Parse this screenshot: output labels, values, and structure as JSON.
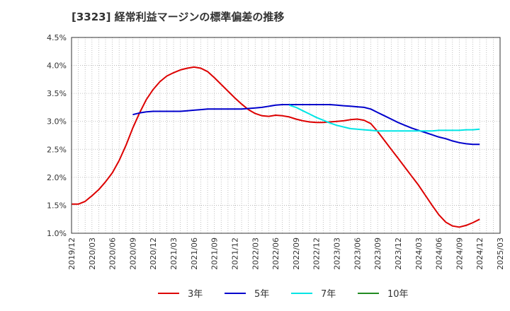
{
  "chart_data": {
    "type": "line",
    "title": "[3323]  経常利益マージンの標準偏差の推移",
    "xlabel": "",
    "ylabel": "",
    "x_ticks": [
      "2019/12",
      "2020/03",
      "2020/06",
      "2020/09",
      "2020/12",
      "2021/03",
      "2021/06",
      "2021/09",
      "2021/12",
      "2022/03",
      "2022/06",
      "2022/09",
      "2022/12",
      "2023/03",
      "2023/06",
      "2023/09",
      "2023/12",
      "2024/03",
      "2024/06",
      "2024/09",
      "2024/12",
      "2025/03"
    ],
    "y_ticks": [
      "1.0%",
      "1.5%",
      "2.0%",
      "2.5%",
      "3.0%",
      "3.5%",
      "4.0%",
      "4.5%"
    ],
    "ylim": [
      1.0,
      4.5
    ],
    "grid": true,
    "legend_position": "bottom",
    "series": [
      {
        "name": "3年",
        "color": "#dd0000",
        "x": [
          "2019/12",
          "2020/01",
          "2020/02",
          "2020/03",
          "2020/04",
          "2020/05",
          "2020/06",
          "2020/07",
          "2020/08",
          "2020/09",
          "2020/10",
          "2020/11",
          "2020/12",
          "2021/01",
          "2021/02",
          "2021/03",
          "2021/04",
          "2021/05",
          "2021/06",
          "2021/07",
          "2021/08",
          "2021/09",
          "2021/10",
          "2021/11",
          "2021/12",
          "2022/01",
          "2022/02",
          "2022/03",
          "2022/04",
          "2022/05",
          "2022/06",
          "2022/07",
          "2022/08",
          "2022/09",
          "2022/10",
          "2022/11",
          "2022/12",
          "2023/01",
          "2023/02",
          "2023/03",
          "2023/04",
          "2023/05",
          "2023/06",
          "2023/07",
          "2023/08",
          "2023/09",
          "2023/10",
          "2023/11",
          "2023/12",
          "2024/01",
          "2024/02",
          "2024/03",
          "2024/04",
          "2024/05",
          "2024/06",
          "2024/07",
          "2024/08",
          "2024/09",
          "2024/10",
          "2024/11",
          "2024/12"
        ],
        "values": [
          1.52,
          1.52,
          1.57,
          1.67,
          1.78,
          1.92,
          2.08,
          2.3,
          2.57,
          2.88,
          3.15,
          3.39,
          3.57,
          3.71,
          3.81,
          3.87,
          3.92,
          3.95,
          3.97,
          3.95,
          3.89,
          3.78,
          3.66,
          3.54,
          3.42,
          3.31,
          3.21,
          3.14,
          3.1,
          3.09,
          3.11,
          3.1,
          3.08,
          3.04,
          3.01,
          2.99,
          2.98,
          2.98,
          2.99,
          3.0,
          3.01,
          3.03,
          3.04,
          3.02,
          2.96,
          2.82,
          2.66,
          2.5,
          2.34,
          2.18,
          2.02,
          1.86,
          1.68,
          1.5,
          1.33,
          1.2,
          1.13,
          1.11,
          1.14,
          1.19,
          1.25
        ]
      },
      {
        "name": "5年",
        "color": "#0000cc",
        "x": [
          "2020/09",
          "2020/10",
          "2020/11",
          "2020/12",
          "2021/01",
          "2021/02",
          "2021/03",
          "2021/04",
          "2021/05",
          "2021/06",
          "2021/07",
          "2021/08",
          "2021/09",
          "2021/10",
          "2021/11",
          "2021/12",
          "2022/01",
          "2022/02",
          "2022/03",
          "2022/04",
          "2022/05",
          "2022/06",
          "2022/07",
          "2022/08",
          "2022/09",
          "2022/10",
          "2022/11",
          "2022/12",
          "2023/01",
          "2023/02",
          "2023/03",
          "2023/04",
          "2023/05",
          "2023/06",
          "2023/07",
          "2023/08",
          "2023/09",
          "2023/10",
          "2023/11",
          "2023/12",
          "2024/01",
          "2024/02",
          "2024/03",
          "2024/04",
          "2024/05",
          "2024/06",
          "2024/07",
          "2024/08",
          "2024/09",
          "2024/10",
          "2024/11",
          "2024/12"
        ],
        "values": [
          3.12,
          3.15,
          3.17,
          3.18,
          3.18,
          3.18,
          3.18,
          3.18,
          3.19,
          3.2,
          3.21,
          3.22,
          3.22,
          3.22,
          3.22,
          3.22,
          3.22,
          3.23,
          3.24,
          3.25,
          3.27,
          3.29,
          3.3,
          3.3,
          3.3,
          3.3,
          3.3,
          3.3,
          3.3,
          3.3,
          3.29,
          3.28,
          3.27,
          3.26,
          3.25,
          3.22,
          3.16,
          3.1,
          3.04,
          2.98,
          2.93,
          2.88,
          2.84,
          2.8,
          2.76,
          2.72,
          2.69,
          2.65,
          2.62,
          2.6,
          2.59,
          2.59
        ]
      },
      {
        "name": "7年",
        "color": "#00e5e5",
        "x": [
          "2022/08",
          "2022/09",
          "2022/10",
          "2022/11",
          "2022/12",
          "2023/01",
          "2023/02",
          "2023/03",
          "2023/04",
          "2023/05",
          "2023/06",
          "2023/07",
          "2023/08",
          "2023/09",
          "2023/10",
          "2023/11",
          "2023/12",
          "2024/01",
          "2024/02",
          "2024/03",
          "2024/04",
          "2024/05",
          "2024/06",
          "2024/07",
          "2024/08",
          "2024/09",
          "2024/10",
          "2024/11",
          "2024/12"
        ],
        "values": [
          3.29,
          3.25,
          3.19,
          3.13,
          3.07,
          3.02,
          2.97,
          2.93,
          2.9,
          2.87,
          2.86,
          2.85,
          2.84,
          2.83,
          2.83,
          2.83,
          2.83,
          2.83,
          2.83,
          2.83,
          2.83,
          2.83,
          2.84,
          2.84,
          2.84,
          2.84,
          2.85,
          2.85,
          2.86
        ]
      },
      {
        "name": "10年",
        "color": "#228b22",
        "x": [],
        "values": []
      }
    ]
  }
}
